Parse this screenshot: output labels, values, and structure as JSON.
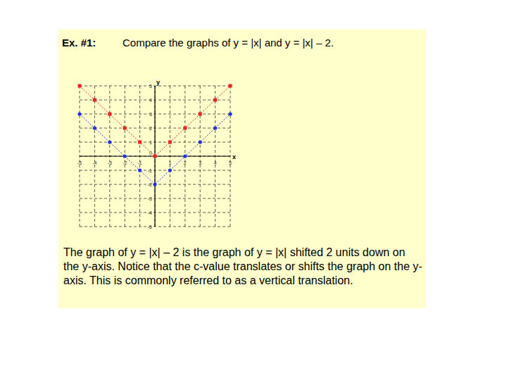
{
  "heading": "Ex. #1:",
  "caption": "The graph of y = |x| – 2 is the graph of y = |x| shifted 2 units down on the y-axis. Notice that the c-value translates or shifts the graph on the y-axis. This is commonly referred to as a vertical translation.",
  "chart_data": {
    "type": "line",
    "title": "Compare the graphs of y = |x| and y = |x| – 2.",
    "x_label": "x",
    "y_label": "y",
    "x": [
      -5,
      -4,
      -3,
      -2,
      -1,
      0,
      1,
      2,
      3,
      4,
      5
    ],
    "series": [
      {
        "color": "#ee2222",
        "marker": "square",
        "line_style": "dotted",
        "values": [
          5,
          4,
          3,
          2,
          1,
          0,
          1,
          2,
          3,
          4,
          5
        ]
      },
      {
        "color": "#2233dd",
        "marker": "circle",
        "line_style": "dotted",
        "values": [
          3,
          2,
          1,
          0,
          -1,
          -2,
          -1,
          0,
          1,
          2,
          3
        ]
      }
    ],
    "xlim": [
      -5,
      5
    ],
    "ylim": [
      -5,
      5
    ],
    "xticks": [
      -5,
      -4,
      -3,
      -2,
      -1,
      0,
      1,
      2,
      3,
      4,
      5
    ],
    "yticks": [
      -5,
      -4,
      -3,
      -2,
      -1,
      0,
      1,
      2,
      3,
      4,
      5
    ],
    "grid": true
  }
}
